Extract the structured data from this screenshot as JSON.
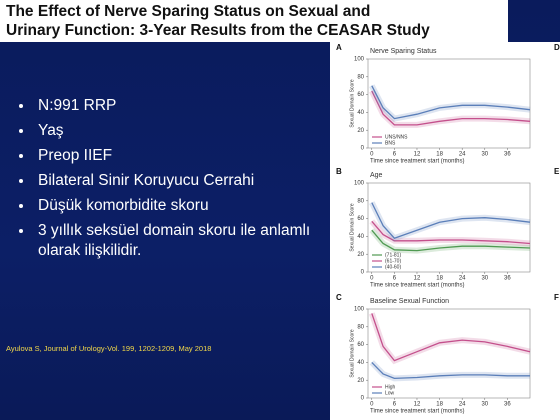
{
  "slide": {
    "title": [
      "The Effect of Nerve Sparing Status on Sexual and",
      "Urinary Function: 3-Year Results from the CEASAR Study"
    ],
    "bullets": [
      "N:991 RRP",
      "Yaş",
      "Preop IIEF",
      "Bilateral Sinir Koruyucu Cerrahi",
      "Düşük komorbidite skoru",
      "3 yıllık seksüel domain skoru ile anlamlı olarak ilişkilidir."
    ],
    "citation": "Ayulova S, Journal of Urology-Vol. 199, 1202-1209, May 2018",
    "side_labels": [
      "D",
      "E",
      "F"
    ]
  },
  "chart_data": [
    {
      "type": "line",
      "panel": "A",
      "title": "Nerve Sparing Status",
      "x_label": "Time since treatment start (months)",
      "y_label": "Sexual Domain Score",
      "x": [
        0,
        3,
        6,
        12,
        18,
        24,
        30,
        36,
        42
      ],
      "xlim": [
        -1,
        42
      ],
      "ylim": [
        0,
        100
      ],
      "xticks": [
        0,
        6,
        12,
        18,
        24,
        30,
        36
      ],
      "yticks": [
        0,
        20,
        40,
        60,
        80,
        100
      ],
      "grid": false,
      "series": [
        {
          "name": "UNS/NNS",
          "color": "#c4508c",
          "values": [
            64,
            38,
            26,
            26,
            30,
            33,
            33,
            32,
            30
          ]
        },
        {
          "name": "BNS",
          "color": "#5b7fb9",
          "values": [
            70,
            45,
            33,
            38,
            45,
            48,
            48,
            46,
            43
          ]
        }
      ]
    },
    {
      "type": "line",
      "panel": "B",
      "title": "Age",
      "x_label": "Time since treatment start (months)",
      "y_label": "Sexual Domain Score",
      "x": [
        0,
        3,
        6,
        12,
        18,
        24,
        30,
        36,
        42
      ],
      "xlim": [
        -1,
        42
      ],
      "ylim": [
        0,
        100
      ],
      "xticks": [
        0,
        6,
        12,
        18,
        24,
        30,
        36
      ],
      "yticks": [
        0,
        20,
        40,
        60,
        80,
        100
      ],
      "grid": false,
      "series": [
        {
          "name": "(71-81)",
          "color": "#4f9a52",
          "values": [
            47,
            32,
            25,
            24,
            27,
            29,
            29,
            28,
            27
          ]
        },
        {
          "name": "(61-70)",
          "color": "#c4508c",
          "values": [
            57,
            42,
            35,
            35,
            36,
            36,
            35,
            34,
            32
          ]
        },
        {
          "name": "(40-60)",
          "color": "#5b7fb9",
          "values": [
            78,
            52,
            38,
            47,
            56,
            60,
            61,
            59,
            56
          ]
        }
      ]
    },
    {
      "type": "line",
      "panel": "C",
      "title": "Baseline Sexual Function",
      "x_label": "Time since treatment start (months)",
      "y_label": "Sexual Domain Score",
      "x": [
        0,
        3,
        6,
        12,
        18,
        24,
        30,
        36,
        42
      ],
      "xlim": [
        -1,
        42
      ],
      "ylim": [
        0,
        100
      ],
      "xticks": [
        0,
        6,
        12,
        18,
        24,
        30,
        36
      ],
      "yticks": [
        0,
        20,
        40,
        60,
        80,
        100
      ],
      "grid": false,
      "series": [
        {
          "name": "High",
          "color": "#c4508c",
          "values": [
            95,
            58,
            42,
            52,
            62,
            65,
            63,
            58,
            52
          ]
        },
        {
          "name": "Low",
          "color": "#5b7fb9",
          "values": [
            40,
            27,
            22,
            23,
            25,
            26,
            26,
            25,
            25
          ]
        }
      ]
    }
  ]
}
